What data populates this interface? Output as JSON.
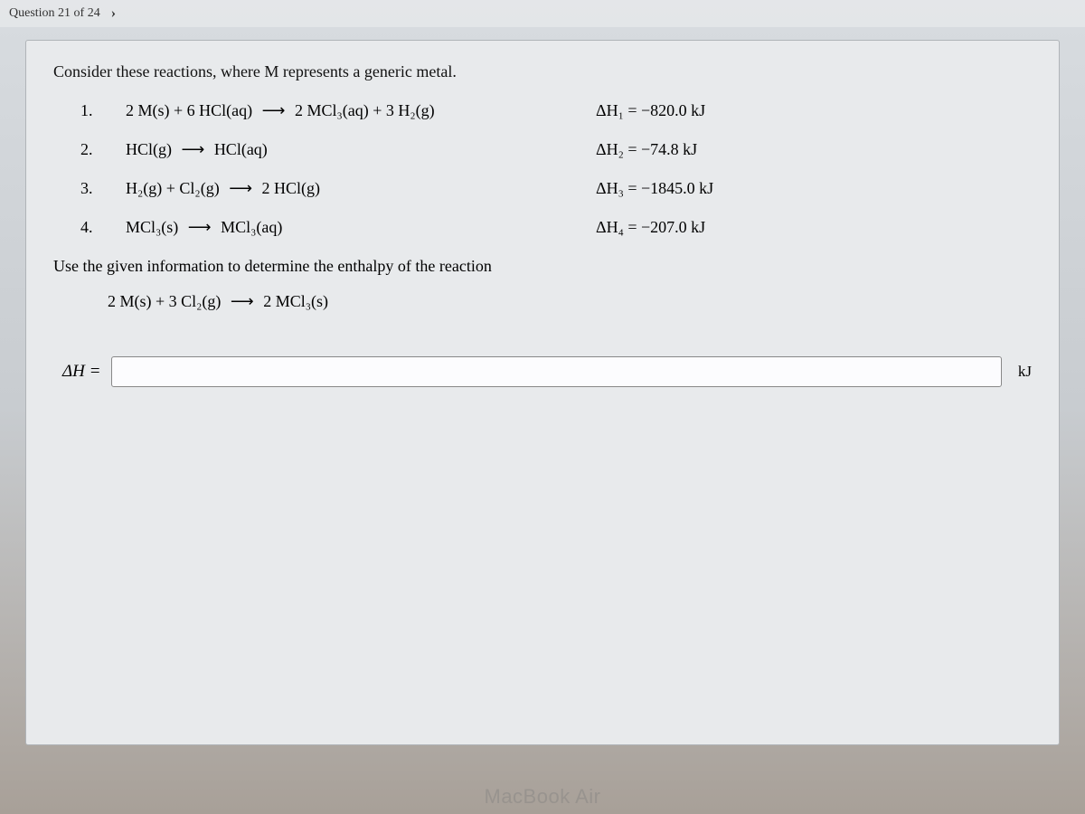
{
  "header": {
    "question_label": "Question 21 of 24",
    "next_icon": "›"
  },
  "intro_text": "Consider these reactions, where M represents a generic metal.",
  "reactions": [
    {
      "num": "1.",
      "lhs": "2 M(s) + 6 HCl(aq)",
      "rhs": "2 MCl₃(aq) + 3 H₂(g)",
      "dh_label": "ΔH₁ = −820.0 kJ"
    },
    {
      "num": "2.",
      "lhs": "HCl(g)",
      "rhs": "HCl(aq)",
      "dh_label": "ΔH₂ = −74.8 kJ"
    },
    {
      "num": "3.",
      "lhs": "H₂(g) + Cl₂(g)",
      "rhs": "2 HCl(g)",
      "dh_label": "ΔH₃ = −1845.0 kJ"
    },
    {
      "num": "4.",
      "lhs": "MCl₃(s)",
      "rhs": "MCl₃(aq)",
      "dh_label": "ΔH₄ = −207.0 kJ"
    }
  ],
  "instruction": "Use the given information to determine the enthalpy of the reaction",
  "target": {
    "lhs": "2 M(s) + 3 Cl₂(g)",
    "rhs": "2 MCl₃(s)"
  },
  "answer": {
    "label": "ΔH =",
    "value": "",
    "unit": "kJ"
  },
  "watermark": "MacBook Air",
  "colors": {
    "panel_bg": "#e8eaec",
    "panel_border": "#b0b4b8",
    "text": "#111111",
    "input_border": "#888888"
  }
}
